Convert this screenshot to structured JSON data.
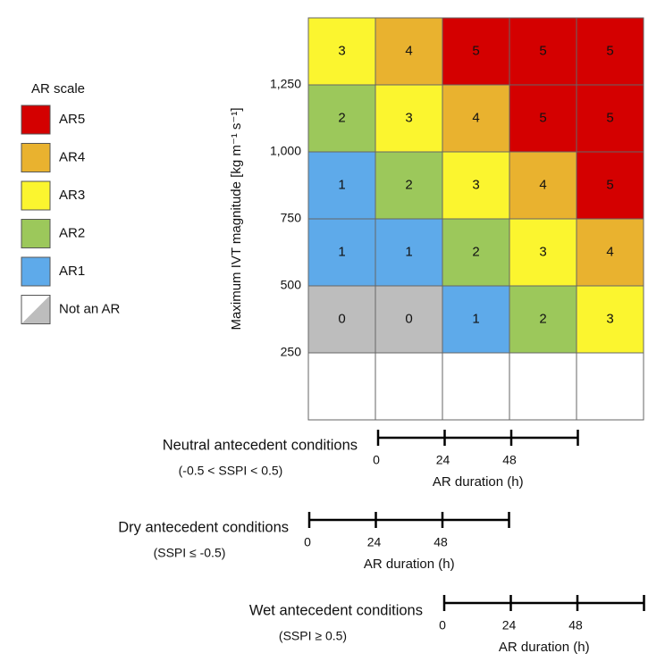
{
  "legend": {
    "title": "AR scale",
    "items": [
      {
        "label": "AR5",
        "color": "#d40000"
      },
      {
        "label": "AR4",
        "color": "#e9b22f"
      },
      {
        "label": "AR3",
        "color": "#fbf52f"
      },
      {
        "label": "AR2",
        "color": "#9cc85b"
      },
      {
        "label": "AR1",
        "color": "#5eaaea"
      },
      {
        "label": "Not an AR",
        "color": "#bdbdbd"
      }
    ]
  },
  "y_axis": {
    "label": "Maximum IVT magnitude [kg m⁻¹ s⁻¹]",
    "ticks": [
      "250",
      "500",
      "750",
      "1,000",
      "1,250"
    ]
  },
  "grid": {
    "rows": [
      [
        3,
        4,
        5,
        5,
        5
      ],
      [
        2,
        3,
        4,
        5,
        5
      ],
      [
        1,
        2,
        3,
        4,
        5
      ],
      [
        1,
        1,
        2,
        3,
        4
      ],
      [
        0,
        0,
        1,
        2,
        3
      ]
    ]
  },
  "timelines": [
    {
      "title": "Neutral antecedent conditions",
      "subtitle": "(-0.5 < SSPI < 0.5)",
      "ticks": [
        "0",
        "24",
        "48"
      ],
      "axis_label": "AR duration (h)"
    },
    {
      "title": "Dry antecedent conditions",
      "subtitle": "(SSPI ≤ -0.5)",
      "ticks": [
        "0",
        "24",
        "48"
      ],
      "axis_label": "AR duration (h)"
    },
    {
      "title": "Wet antecedent conditions",
      "subtitle": "(SSPI ≥ 0.5)",
      "ticks": [
        "0",
        "24",
        "48"
      ],
      "axis_label": "AR duration (h)"
    }
  ]
}
